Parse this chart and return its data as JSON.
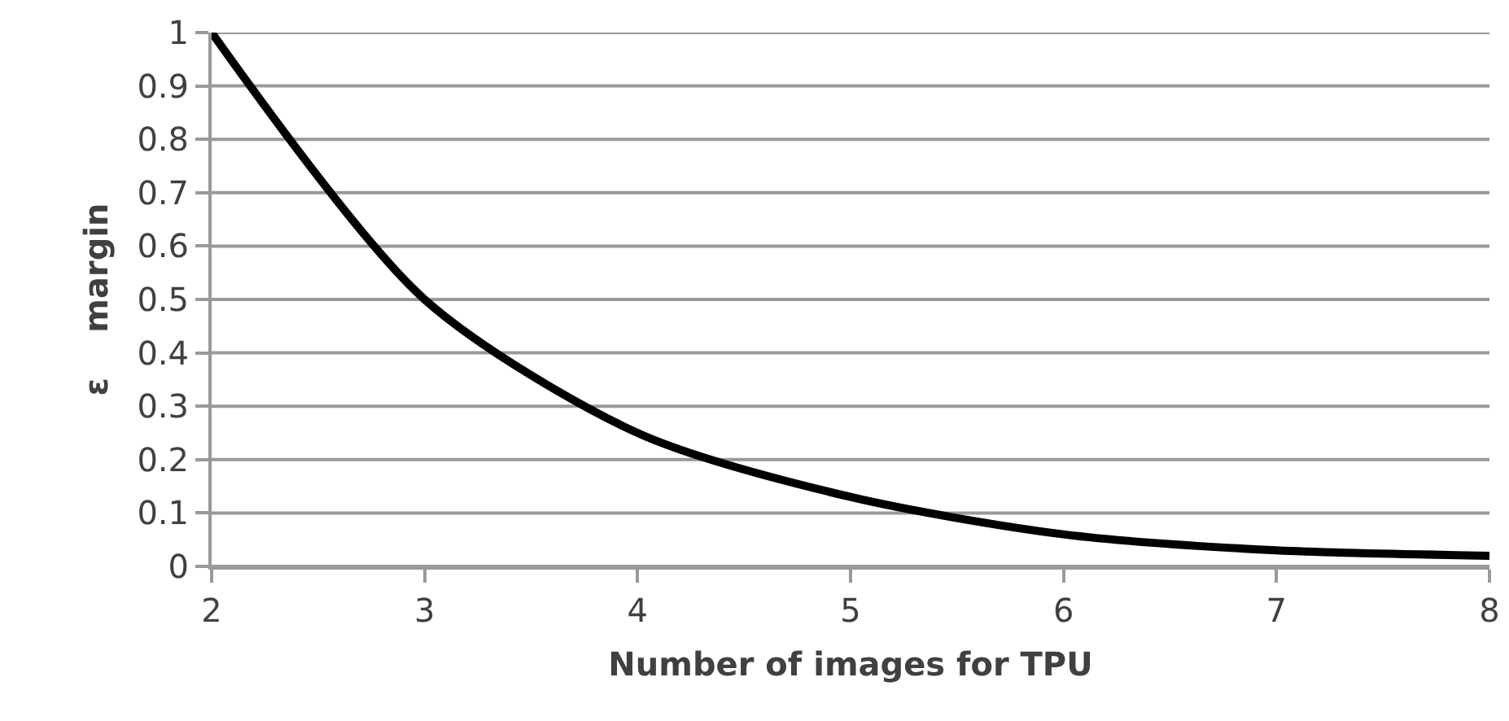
{
  "chart_data": {
    "type": "line",
    "xlabel": "Number of images for TPU",
    "ylabel": "ε    margin",
    "x": [
      2,
      3,
      4,
      5,
      6,
      7,
      8
    ],
    "series": [
      {
        "color": "#000000",
        "values": [
          1,
          0.5,
          0.25,
          0.13,
          0.06,
          0.03,
          0.02
        ]
      }
    ],
    "xlim": [
      2,
      8
    ],
    "xticks": [
      2,
      3,
      4,
      5,
      6,
      7,
      8
    ],
    "ylim": [
      0,
      1
    ],
    "yticks": [
      0,
      0.1,
      0.2,
      0.3,
      0.4,
      0.5,
      0.6,
      0.7,
      0.8,
      0.9,
      1
    ],
    "grid": "y",
    "marker": "none",
    "line_style": "solid"
  }
}
